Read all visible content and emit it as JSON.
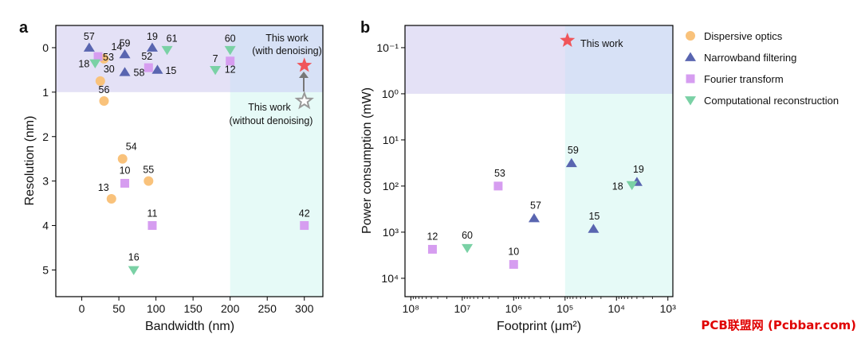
{
  "panel_labels": [
    "a",
    "b"
  ],
  "legend": [
    {
      "label": "Dispersive optics",
      "marker": "circle",
      "color": "#f9c27b"
    },
    {
      "label": "Narrowband filtering",
      "marker": "triangle-up",
      "color": "#5965b0"
    },
    {
      "label": "Fourier transform",
      "marker": "square",
      "color": "#d69df0"
    },
    {
      "label": "Computational reconstruction",
      "marker": "triangle-down",
      "color": "#7ad1a5"
    }
  ],
  "annotations": {
    "a_with": [
      "This work",
      "(with denoising)"
    ],
    "a_without": [
      "This work",
      "(without denoising)"
    ],
    "b_this": "This work"
  },
  "watermark": "PCB联盟网 (Pcbbar.com)",
  "chart_data": [
    {
      "type": "scatter",
      "xlabel": "Bandwidth (nm)",
      "ylabel": "Resolution (nm)",
      "xlim": [
        -35,
        325
      ],
      "ylim": [
        5.6,
        -0.5
      ],
      "y_inverted": true,
      "xticks": [
        0,
        50,
        100,
        150,
        200,
        250,
        300
      ],
      "yticks": [
        0,
        1,
        2,
        3,
        4,
        5
      ],
      "shaded_regions": [
        {
          "x": [
            -35,
            325
          ],
          "y": [
            -0.5,
            1.0
          ],
          "color": "#e4e1f6"
        },
        {
          "x": [
            200,
            325
          ],
          "y": [
            1.0,
            5.6
          ],
          "color": "#e6faf7"
        },
        {
          "x": [
            200,
            325
          ],
          "y": [
            -0.5,
            1.0
          ],
          "color": "#d7e1f6"
        }
      ],
      "series": [
        {
          "name": "Dispersive optics",
          "points": [
            {
              "x": 30,
              "y": 0.25,
              "label": "14"
            },
            {
              "x": 25,
              "y": 0.75,
              "label": "30"
            },
            {
              "x": 30,
              "y": 1.2,
              "label": "56"
            },
            {
              "x": 55,
              "y": 2.5,
              "label": "54"
            },
            {
              "x": 90,
              "y": 3.0,
              "label": "55"
            },
            {
              "x": 40,
              "y": 3.4,
              "label": "13"
            }
          ]
        },
        {
          "name": "Narrowband filtering",
          "points": [
            {
              "x": 10,
              "y": 0.0,
              "label": "57"
            },
            {
              "x": 58,
              "y": 0.15,
              "label": "59"
            },
            {
              "x": 58,
              "y": 0.55,
              "label": "58"
            },
            {
              "x": 95,
              "y": 0.0,
              "label": "19"
            },
            {
              "x": 102,
              "y": 0.5,
              "label": "15"
            }
          ]
        },
        {
          "name": "Fourier transform",
          "points": [
            {
              "x": 22,
              "y": 0.2,
              "label": "53"
            },
            {
              "x": 90,
              "y": 0.45,
              "label": "52"
            },
            {
              "x": 200,
              "y": 0.3,
              "label": "12"
            },
            {
              "x": 58,
              "y": 3.05,
              "label": "10"
            },
            {
              "x": 95,
              "y": 4.0,
              "label": "11"
            },
            {
              "x": 300,
              "y": 4.0,
              "label": "42"
            }
          ]
        },
        {
          "name": "Computational reconstruction",
          "points": [
            {
              "x": 18,
              "y": 0.35,
              "label": "18"
            },
            {
              "x": 115,
              "y": 0.05,
              "label": "61"
            },
            {
              "x": 200,
              "y": 0.05,
              "label": "60"
            },
            {
              "x": 180,
              "y": 0.5,
              "label": "7"
            },
            {
              "x": 70,
              "y": 5.0,
              "label": "16"
            }
          ]
        },
        {
          "name": "This work (with denoising)",
          "points": [
            {
              "x": 300,
              "y": 0.4
            }
          ]
        },
        {
          "name": "This work (without denoising)",
          "points": [
            {
              "x": 300,
              "y": 1.2
            }
          ]
        }
      ]
    },
    {
      "type": "scatter",
      "xlabel": "Footprint (μm²)",
      "ylabel": "Power consumption (mW)",
      "xscale": "log",
      "yscale": "log",
      "x_reversed": true,
      "y_inverted": true,
      "xlim": [
        130000000.0,
        800.0
      ],
      "ylim": [
        0.033,
        25000
      ],
      "xticks": [
        100000000.0,
        10000000.0,
        1000000.0,
        100000.0,
        10000.0,
        1000.0
      ],
      "yticks": [
        0.1,
        1,
        10,
        100,
        1000,
        10000
      ],
      "shaded_regions": [
        {
          "x": [
            130000000.0,
            800.0
          ],
          "y": [
            0.033,
            1.0
          ],
          "color": "#e4e1f6"
        },
        {
          "x": [
            100000.0,
            800.0
          ],
          "y": [
            1.0,
            25000
          ],
          "color": "#e6faf7"
        },
        {
          "x": [
            100000.0,
            800.0
          ],
          "y": [
            0.033,
            1.0
          ],
          "color": "#d7e1f6"
        }
      ],
      "series": [
        {
          "name": "Narrowband filtering",
          "points": [
            {
              "x": 75000.0,
              "y": 32,
              "label": "59"
            },
            {
              "x": 400000.0,
              "y": 500,
              "label": "57"
            },
            {
              "x": 28000.0,
              "y": 850,
              "label": "15"
            },
            {
              "x": 4000.0,
              "y": 82,
              "label": "19"
            }
          ]
        },
        {
          "name": "Fourier transform",
          "points": [
            {
              "x": 2000000.0,
              "y": 100,
              "label": "53"
            },
            {
              "x": 38000000.0,
              "y": 2350,
              "label": "12"
            },
            {
              "x": 1000000.0,
              "y": 5000,
              "label": "10"
            }
          ]
        },
        {
          "name": "Computational reconstruction",
          "points": [
            {
              "x": 5000.0,
              "y": 95,
              "label": "18"
            },
            {
              "x": 8000000.0,
              "y": 2200,
              "label": "60"
            }
          ]
        },
        {
          "name": "This work",
          "points": [
            {
              "x": 90000.0,
              "y": 0.07
            }
          ]
        }
      ]
    }
  ]
}
